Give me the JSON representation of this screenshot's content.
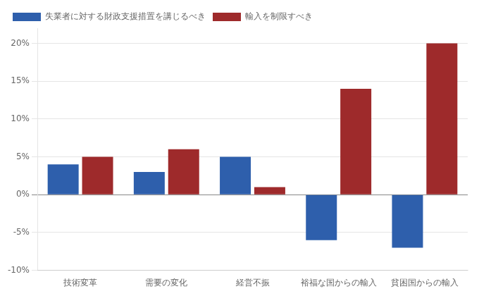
{
  "chart_data": {
    "type": "bar",
    "categories": [
      "技術変革",
      "需要の変化",
      "経営不振",
      "裕福な国からの輸入",
      "貧困国からの輸入"
    ],
    "series": [
      {
        "name": "失業者に対する財政支援措置を講じるべき",
        "color": "#2E5FAC",
        "values": [
          4,
          3,
          5,
          -6,
          -7
        ]
      },
      {
        "name": "輸入を制限すべき",
        "color": "#9E2A2B",
        "values": [
          5,
          6,
          1,
          14,
          20
        ]
      }
    ],
    "ylim": [
      -10,
      22
    ],
    "yticks": [
      {
        "value": -10,
        "label": "-10%"
      },
      {
        "value": -5,
        "label": "-5%"
      },
      {
        "value": 0,
        "label": "0%"
      },
      {
        "value": 5,
        "label": "5%"
      },
      {
        "value": 10,
        "label": "10%"
      },
      {
        "value": 15,
        "label": "15%"
      },
      {
        "value": 20,
        "label": "20%"
      }
    ],
    "grid": true,
    "legend": "top"
  }
}
